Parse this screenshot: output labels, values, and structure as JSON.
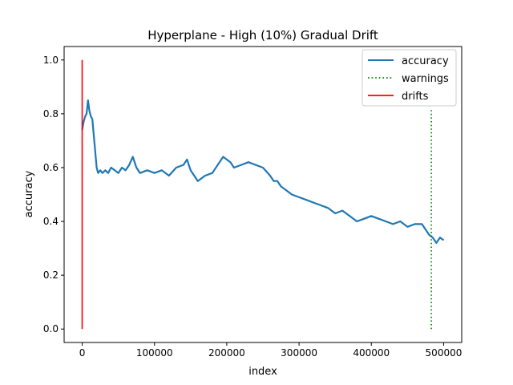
{
  "chart_data": {
    "type": "line",
    "title": "Hyperplane - High (10%) Gradual Drift",
    "xlabel": "index",
    "ylabel": "accuracy",
    "xlim": [
      -25000,
      525000
    ],
    "ylim": [
      -0.05,
      1.05
    ],
    "xticks": [
      0,
      100000,
      200000,
      300000,
      400000,
      500000
    ],
    "yticks": [
      0.0,
      0.2,
      0.4,
      0.6,
      0.8,
      1.0
    ],
    "xtick_labels": [
      "0",
      "100000",
      "200000",
      "300000",
      "400000",
      "500000"
    ],
    "ytick_labels": [
      "0.0",
      "0.2",
      "0.4",
      "0.6",
      "0.8",
      "1.0"
    ],
    "legend_position": "top-right",
    "series": [
      {
        "name": "accuracy",
        "color": "#1f77b4",
        "style": "solid",
        "x": [
          0,
          2000,
          4000,
          6000,
          8000,
          10000,
          12000,
          14000,
          16000,
          18000,
          20000,
          22000,
          25000,
          28000,
          32000,
          36000,
          40000,
          45000,
          50000,
          55000,
          60000,
          65000,
          70000,
          75000,
          80000,
          90000,
          100000,
          110000,
          120000,
          130000,
          140000,
          145000,
          150000,
          155000,
          160000,
          170000,
          180000,
          190000,
          195000,
          200000,
          205000,
          210000,
          220000,
          230000,
          240000,
          250000,
          260000,
          265000,
          270000,
          275000,
          280000,
          290000,
          300000,
          310000,
          320000,
          330000,
          340000,
          350000,
          360000,
          370000,
          380000,
          390000,
          400000,
          410000,
          420000,
          430000,
          440000,
          450000,
          460000,
          470000,
          475000,
          480000,
          485000,
          490000,
          495000,
          500000
        ],
        "y": [
          0.74,
          0.77,
          0.79,
          0.8,
          0.85,
          0.81,
          0.79,
          0.78,
          0.72,
          0.66,
          0.6,
          0.58,
          0.59,
          0.58,
          0.59,
          0.58,
          0.6,
          0.59,
          0.58,
          0.6,
          0.59,
          0.61,
          0.64,
          0.6,
          0.58,
          0.59,
          0.58,
          0.59,
          0.57,
          0.6,
          0.61,
          0.63,
          0.59,
          0.57,
          0.55,
          0.57,
          0.58,
          0.62,
          0.64,
          0.63,
          0.62,
          0.6,
          0.61,
          0.62,
          0.61,
          0.6,
          0.57,
          0.55,
          0.55,
          0.53,
          0.52,
          0.5,
          0.49,
          0.48,
          0.47,
          0.46,
          0.45,
          0.43,
          0.44,
          0.42,
          0.4,
          0.41,
          0.42,
          0.41,
          0.4,
          0.39,
          0.4,
          0.38,
          0.39,
          0.39,
          0.37,
          0.35,
          0.34,
          0.32,
          0.34,
          0.33
        ]
      },
      {
        "name": "warnings",
        "color": "#008000",
        "style": "dotted",
        "x": [
          483000,
          483000
        ],
        "y": [
          0.0,
          0.82
        ]
      },
      {
        "name": "drifts",
        "color": "#ff0000",
        "style": "solid",
        "x": [
          0,
          0
        ],
        "y": [
          0.0,
          1.0
        ]
      }
    ]
  }
}
